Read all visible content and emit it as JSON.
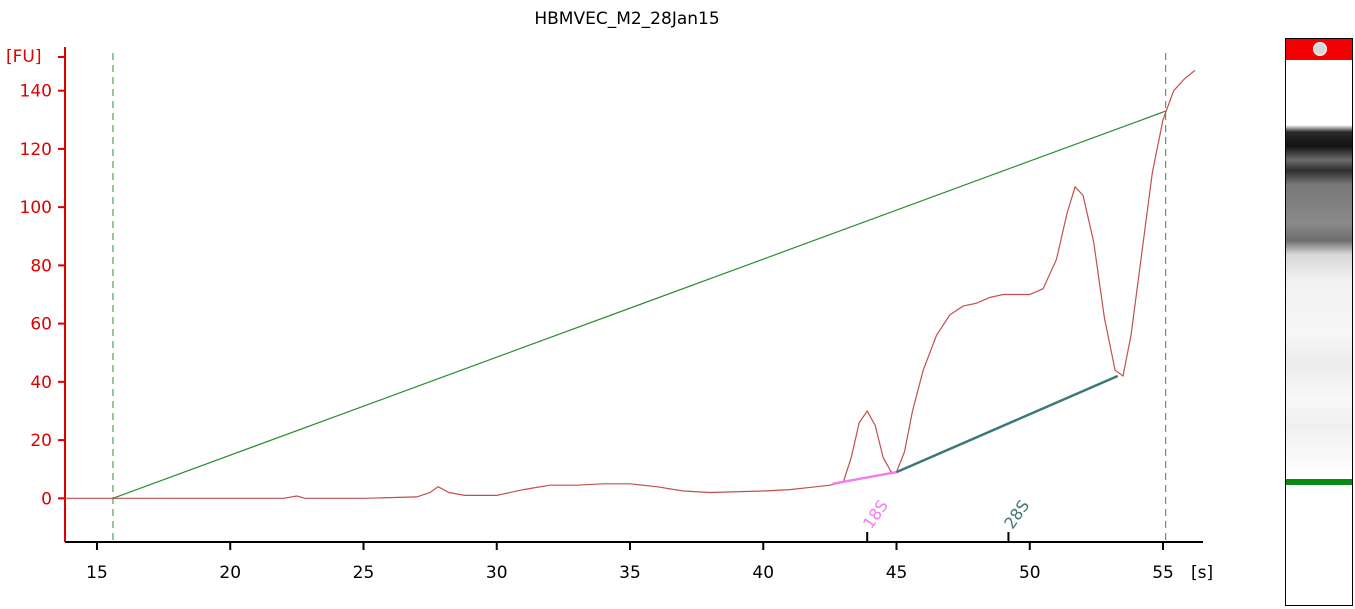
{
  "chart_data": {
    "type": "line",
    "title": "HBMVEC_M2_28Jan15",
    "ylabel": "[FU]",
    "xlabel": "[s]",
    "xlim": [
      13.8,
      56.5
    ],
    "ylim": [
      -15,
      155
    ],
    "xticks": [
      15,
      20,
      25,
      30,
      35,
      40,
      45,
      50,
      55
    ],
    "yticks": [
      0,
      20,
      40,
      60,
      80,
      100,
      120,
      140
    ],
    "series": [
      {
        "name": "",
        "color": "#c0504d",
        "x": [
          13.8,
          15.0,
          16.0,
          18.0,
          20.0,
          22.0,
          22.5,
          22.8,
          25.0,
          27.0,
          27.5,
          27.8,
          28.2,
          28.8,
          30.0,
          31.0,
          32.0,
          33.0,
          34.0,
          35.0,
          36.0,
          37.0,
          38.0,
          40.0,
          41.0,
          42.0,
          42.5,
          43.0,
          43.3,
          43.6,
          43.9,
          44.2,
          44.5,
          44.8,
          45.0,
          45.3,
          45.6,
          46.0,
          46.5,
          47.0,
          47.5,
          48.0,
          48.5,
          49.0,
          49.5,
          50.0,
          50.5,
          51.0,
          51.4,
          51.7,
          52.0,
          52.4,
          52.8,
          53.2,
          53.5,
          53.8,
          54.2,
          54.6,
          55.0,
          55.4,
          55.8,
          56.2
        ],
        "y": [
          0,
          0,
          0,
          0,
          0,
          0,
          0.8,
          0,
          0,
          0.5,
          2,
          4,
          2,
          1,
          1,
          3,
          4.5,
          4.5,
          5,
          5,
          4,
          2.5,
          2,
          2.5,
          3,
          4,
          4.5,
          5.5,
          14,
          26,
          30,
          25,
          14,
          9,
          9,
          16,
          30,
          44,
          56,
          63,
          66,
          67,
          69,
          70,
          70,
          70,
          72,
          82,
          98,
          107,
          104,
          88,
          62,
          44,
          42,
          56,
          84,
          112,
          130,
          140,
          144,
          147
        ]
      },
      {
        "name": "",
        "color": "#2e8b2e",
        "x": [
          15.6,
          55.1
        ],
        "y": [
          0,
          133
        ]
      }
    ],
    "baselines": [
      {
        "name": "",
        "color": "#f07ef0",
        "x": [
          42.6,
          45.0
        ],
        "y": [
          5,
          9
        ]
      },
      {
        "name": "",
        "color": "#3c7878",
        "x": [
          45.0,
          53.3
        ],
        "y": [
          9,
          42
        ]
      }
    ],
    "vlines": [
      15.6,
      55.1
    ],
    "markers": [
      {
        "label": "18S",
        "x": 43.9,
        "color": "#f07ef0"
      },
      {
        "label": "28S",
        "x": 49.2,
        "color": "#3c7878"
      }
    ],
    "grid": false
  },
  "colors": {
    "axis_y": "#e00000",
    "axis_x": "#000000",
    "trace": "#c0504d",
    "ladder_line": "#2e8b2e",
    "gel_header": "#f00000",
    "gel_marker": "#0a8a14"
  },
  "gel": {
    "header_icon": "gear-icon"
  }
}
